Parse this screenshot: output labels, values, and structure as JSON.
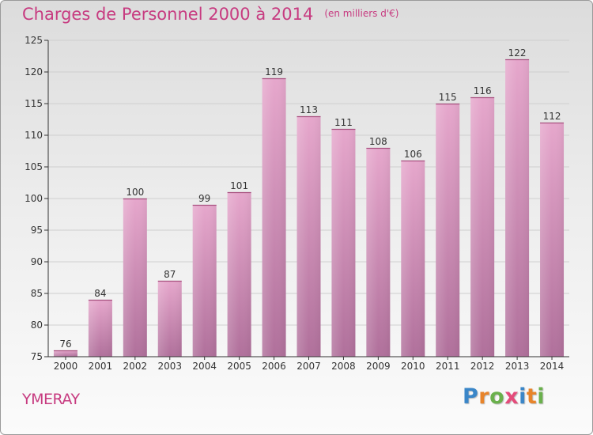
{
  "header": {
    "title": "Charges de Personnel 2000 à 2014",
    "subtitle": "(en milliers d'€)"
  },
  "footer": {
    "commune": "YMERAY",
    "logo": {
      "text": "Proxiti",
      "letters": [
        "P",
        "r",
        "o",
        "x",
        "i",
        "t",
        "i"
      ],
      "colors": [
        "#3a86c8",
        "#e8842a",
        "#6ab04c",
        "#e44b7a",
        "#3a86c8",
        "#e8842a",
        "#6ab04c"
      ]
    }
  },
  "colors": {
    "accent": "#c73b80",
    "bar_top": "#e6a7cc",
    "bar_bottom": "#b0709b",
    "axis": "#333333",
    "grid": "#cfcfcf"
  },
  "chart_data": {
    "type": "bar",
    "title": "Charges de Personnel 2000 à 2014",
    "subtitle": "(en milliers d'€)",
    "categories": [
      "2000",
      "2001",
      "2002",
      "2003",
      "2004",
      "2005",
      "2006",
      "2007",
      "2008",
      "2009",
      "2010",
      "2011",
      "2012",
      "2013",
      "2014"
    ],
    "values": [
      76,
      84,
      100,
      87,
      99,
      101,
      119,
      113,
      111,
      108,
      106,
      115,
      116,
      122,
      112
    ],
    "ylim": [
      75,
      125
    ],
    "yticks": [
      75,
      80,
      85,
      90,
      95,
      100,
      105,
      110,
      115,
      120,
      125
    ],
    "grid": true,
    "data_labels": true
  }
}
